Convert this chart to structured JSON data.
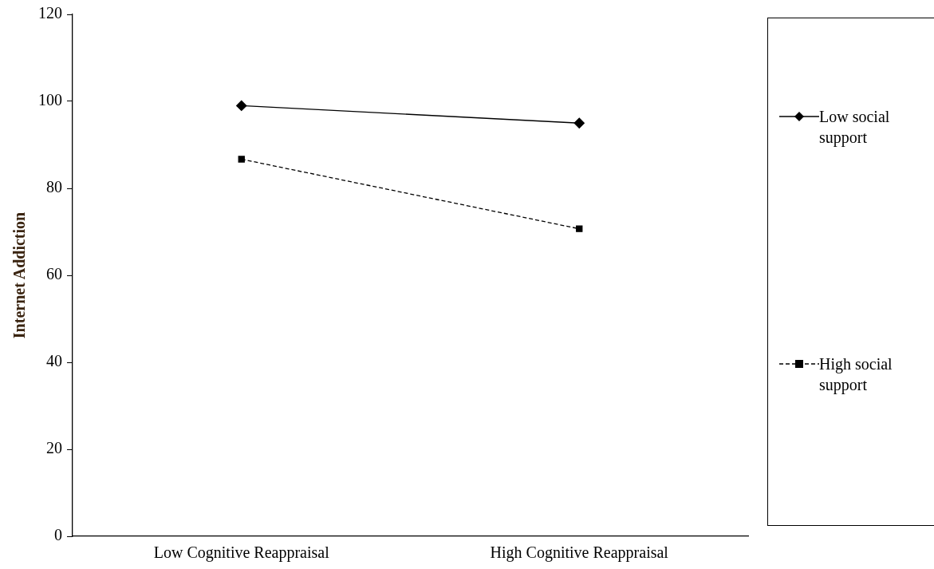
{
  "chart_data": {
    "type": "line",
    "ylabel": "Internet Addiction",
    "categories": [
      "Low Cognitive Reappraisal",
      "High Cognitive Reappraisal"
    ],
    "series": [
      {
        "name": "Low social support",
        "color": "#000000",
        "values": [
          99,
          95
        ],
        "marker": "diamond",
        "line_style": "solid"
      },
      {
        "name": "High social support",
        "color": "#000000",
        "values": [
          86.7,
          70.7
        ],
        "marker": "square",
        "line_style": "dashed"
      }
    ],
    "ylim": [
      0,
      120
    ],
    "yticks": [
      0,
      20,
      40,
      60,
      80,
      100,
      120
    ],
    "grid": false,
    "legend": "right"
  }
}
